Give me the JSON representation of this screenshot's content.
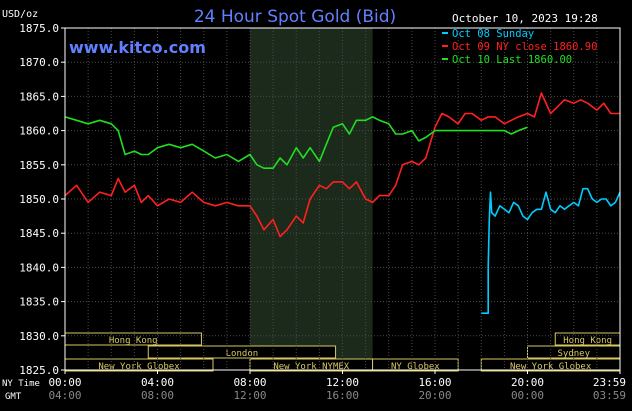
{
  "chart_data": {
    "type": "line",
    "title": "24 Hour Spot Gold (Bid)",
    "unit_label": "USD/oz",
    "website": "www.kitco.com",
    "timestamp": "October 10, 2023 19:28",
    "ylim": [
      1825.0,
      1875.0
    ],
    "y_ticks": [
      "1875.0",
      "1870.0",
      "1865.0",
      "1860.0",
      "1855.0",
      "1850.0",
      "1845.0",
      "1840.0",
      "1835.0",
      "1830.0",
      "1825.0"
    ],
    "x_range_hours": [
      0,
      24
    ],
    "ny_time_label": "NY Time",
    "gmt_label": "GMT",
    "ny_time_ticks": [
      "00:00",
      "04:00",
      "08:00",
      "12:00",
      "16:00",
      "20:00",
      "23:59"
    ],
    "gmt_ticks": [
      "04:00",
      "08:00",
      "12:00",
      "16:00",
      "20:00",
      "00:00",
      "03:59"
    ],
    "legend": [
      {
        "label": "Oct 08 Sunday",
        "color": "#00ccff"
      },
      {
        "label": "Oct 09 NY close 1860.90",
        "color": "#ff2020"
      },
      {
        "label": "Oct 10 Last 1860.00",
        "color": "#22dd22"
      }
    ],
    "series": [
      {
        "name": "Oct 08 Sunday",
        "color": "#00ccff",
        "x": [
          18.0,
          18.3,
          18.3,
          18.35,
          18.4,
          18.45,
          18.6,
          18.8,
          19.0,
          19.2,
          19.4,
          19.6,
          19.8,
          20.0,
          20.2,
          20.4,
          20.6,
          20.8,
          21.0,
          21.2,
          21.4,
          21.6,
          21.8,
          22.0,
          22.2,
          22.4,
          22.6,
          22.8,
          23.0,
          23.2,
          23.4,
          23.6,
          23.8,
          24.0
        ],
        "y": [
          1833.3,
          1833.3,
          1840.0,
          1847.0,
          1851.0,
          1848.0,
          1847.5,
          1849.0,
          1848.5,
          1848.0,
          1849.5,
          1849.0,
          1847.5,
          1847.0,
          1848.0,
          1848.5,
          1848.5,
          1851.0,
          1848.5,
          1848.0,
          1849.0,
          1848.5,
          1849.0,
          1849.5,
          1849.0,
          1851.5,
          1851.5,
          1850.0,
          1849.5,
          1850.0,
          1850.0,
          1849.0,
          1849.5,
          1851.0
        ]
      },
      {
        "name": "Oct 09 NY close 1860.90",
        "color": "#ff2020",
        "x": [
          0.0,
          0.5,
          1.0,
          1.5,
          2.0,
          2.3,
          2.6,
          3.0,
          3.3,
          3.6,
          4.0,
          4.5,
          5.0,
          5.5,
          6.0,
          6.5,
          7.0,
          7.5,
          8.0,
          8.3,
          8.6,
          9.0,
          9.3,
          9.6,
          10.0,
          10.3,
          10.6,
          11.0,
          11.3,
          11.6,
          12.0,
          12.3,
          12.6,
          13.0,
          13.3,
          13.6,
          14.0,
          14.3,
          14.6,
          15.0,
          15.3,
          15.6,
          16.0,
          16.3,
          16.6,
          17.0,
          17.3,
          17.6,
          18.0,
          18.3,
          18.6,
          19.0,
          19.3,
          19.6,
          20.0,
          20.3,
          20.6,
          21.0,
          21.3,
          21.6,
          22.0,
          22.3,
          22.6,
          23.0,
          23.3,
          23.6,
          24.0
        ],
        "y": [
          1850.5,
          1852.0,
          1849.5,
          1851.0,
          1850.5,
          1853.0,
          1851.0,
          1852.0,
          1849.5,
          1850.5,
          1849.0,
          1850.0,
          1849.5,
          1851.0,
          1849.5,
          1849.0,
          1849.5,
          1849.0,
          1849.0,
          1847.5,
          1845.5,
          1847.0,
          1844.5,
          1845.5,
          1847.5,
          1846.5,
          1850.0,
          1852.0,
          1851.5,
          1852.5,
          1852.5,
          1851.5,
          1852.5,
          1850.0,
          1849.5,
          1850.5,
          1850.5,
          1852.0,
          1855.0,
          1855.5,
          1855.0,
          1856.0,
          1860.5,
          1862.5,
          1862.0,
          1861.0,
          1862.5,
          1862.5,
          1861.5,
          1862.0,
          1862.0,
          1861.0,
          1861.5,
          1862.0,
          1862.5,
          1862.0,
          1865.5,
          1862.5,
          1863.5,
          1864.5,
          1864.0,
          1864.5,
          1864.0,
          1863.0,
          1864.0,
          1862.5,
          1862.5
        ]
      },
      {
        "name": "Oct 10 Last 1860.00",
        "color": "#22dd22",
        "x": [
          0.0,
          0.5,
          1.0,
          1.5,
          2.0,
          2.3,
          2.6,
          3.0,
          3.3,
          3.6,
          4.0,
          4.5,
          5.0,
          5.5,
          6.0,
          6.5,
          7.0,
          7.5,
          8.0,
          8.3,
          8.6,
          9.0,
          9.3,
          9.6,
          10.0,
          10.3,
          10.6,
          11.0,
          11.3,
          11.6,
          12.0,
          12.3,
          12.6,
          13.0,
          13.3,
          13.6,
          14.0,
          14.3,
          14.6,
          15.0,
          15.3,
          15.6,
          16.0,
          16.3,
          16.6,
          17.0,
          17.3,
          17.6,
          18.0,
          18.3,
          18.6,
          19.0,
          19.3,
          19.6,
          20.0
        ],
        "y": [
          1862.0,
          1861.5,
          1861.0,
          1861.5,
          1861.0,
          1860.0,
          1856.5,
          1857.0,
          1856.5,
          1856.5,
          1857.5,
          1858.0,
          1857.5,
          1858.0,
          1857.0,
          1856.0,
          1856.5,
          1855.5,
          1856.5,
          1855.0,
          1854.5,
          1854.5,
          1856.0,
          1855.0,
          1857.5,
          1856.0,
          1857.5,
          1855.5,
          1858.0,
          1860.5,
          1861.0,
          1859.5,
          1861.5,
          1861.5,
          1862.0,
          1861.5,
          1861.0,
          1859.5,
          1859.5,
          1860.0,
          1858.5,
          1859.0,
          1860.0,
          1860.0,
          1860.0,
          1860.0,
          1860.0,
          1860.0,
          1860.0,
          1860.0,
          1860.0,
          1860.0,
          1859.5,
          1860.0,
          1860.5
        ]
      }
    ],
    "market_sessions": [
      {
        "label": "Hong Kong",
        "start": 0.0,
        "end": 5.9,
        "row": 0
      },
      {
        "label": "London",
        "start": 3.6,
        "end": 11.7,
        "row": 1
      },
      {
        "label": "New York Globex",
        "start": 0.0,
        "end": 6.4,
        "row": 2
      },
      {
        "label": "New York NYMEX",
        "start": 8.0,
        "end": 13.3,
        "row": 2
      },
      {
        "label": "NY Globex",
        "start": 13.3,
        "end": 17.0,
        "row": 2
      },
      {
        "label": "Hong Kong",
        "start": 21.2,
        "end": 24.0,
        "row": 0
      },
      {
        "label": "Sydney",
        "start": 20.0,
        "end": 24.0,
        "row": 1
      },
      {
        "label": "New York Globex",
        "start": 18.0,
        "end": 24.0,
        "row": 2
      }
    ],
    "shaded_period": [
      8.0,
      13.3
    ],
    "grid": true
  }
}
